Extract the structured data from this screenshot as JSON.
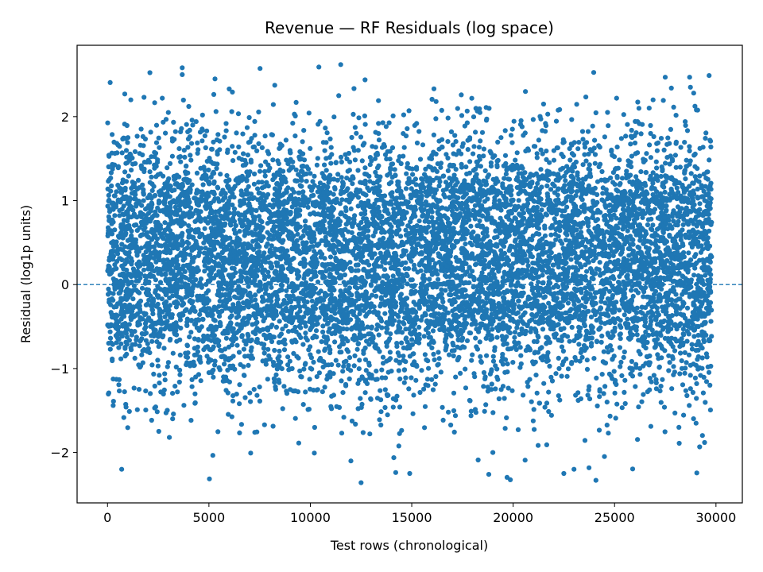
{
  "chart_data": {
    "type": "scatter",
    "title": "Revenue — RF Residuals (log space)",
    "xlabel": "Test rows (chronological)",
    "ylabel": "Residual (log1p units)",
    "xlim": [
      -1500,
      31300
    ],
    "ylim": [
      -2.6,
      2.85
    ],
    "xticks": [
      0,
      5000,
      10000,
      15000,
      20000,
      25000,
      30000
    ],
    "xtick_labels": [
      "0",
      "5000",
      "10000",
      "15000",
      "20000",
      "25000",
      "30000"
    ],
    "yticks": [
      -2,
      -1,
      0,
      1,
      2
    ],
    "ytick_labels": [
      "−2",
      "−1",
      "0",
      "1",
      "2"
    ],
    "reference_line": {
      "y": 0,
      "style": "dashed"
    },
    "grid": false,
    "colors": {
      "points": "#1f77b4",
      "reference": "#1f77b4"
    },
    "series": [
      {
        "x_range": [
          0,
          29800
        ],
        "density_band": {
          "core_y": [
            -0.6,
            1.2
          ],
          "upper_tail_max": 2.6,
          "lower_tail_min": -2.35
        },
        "points_x": [
          11500,
          5300,
          6000,
          850,
          1150,
          1800,
          2700,
          12500,
          14900,
          18800,
          22500,
          27500,
          28700,
          28900,
          25100,
          26900,
          27800,
          11400,
          4200,
          9300,
          700,
          12000,
          19000,
          23000,
          3000,
          16200,
          21500,
          26200
        ],
        "points_y": [
          2.62,
          2.45,
          2.33,
          2.27,
          2.2,
          2.23,
          2.22,
          -2.36,
          -2.25,
          -2.26,
          -2.25,
          2.47,
          2.47,
          2.28,
          2.22,
          2.2,
          2.34,
          2.25,
          1.9,
          2.17,
          -2.2,
          -2.1,
          -2.0,
          -2.2,
          2.05,
          2.18,
          2.15,
          2.1
        ]
      }
    ]
  }
}
